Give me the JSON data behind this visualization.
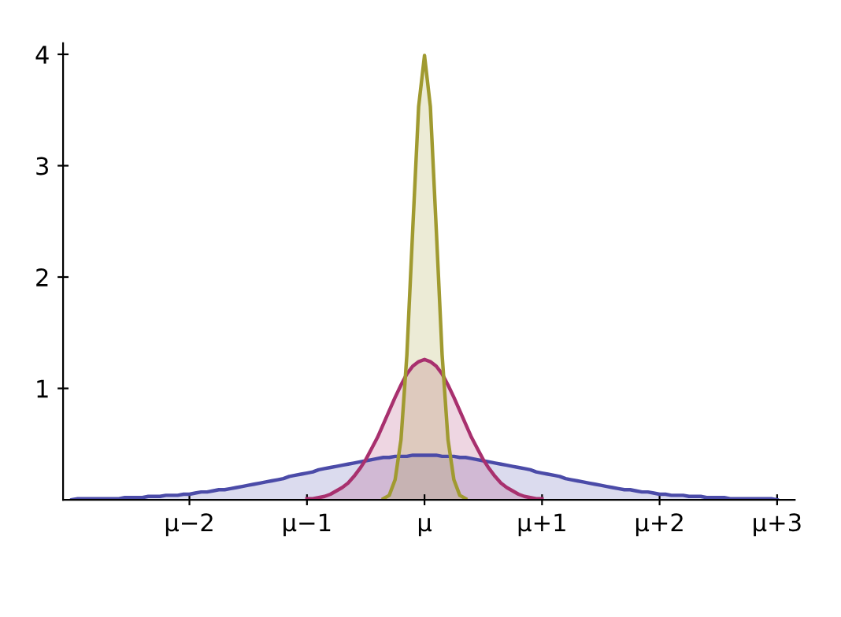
{
  "chart_data": {
    "type": "area",
    "categories": [
      null,
      null,
      null,
      null,
      null,
      null,
      null,
      null,
      null,
      null,
      null,
      null,
      null,
      null,
      null,
      null,
      null,
      null,
      null,
      null,
      "μ−2",
      null,
      null,
      null,
      null,
      null,
      null,
      null,
      null,
      null,
      null,
      null,
      null,
      null,
      null,
      null,
      null,
      null,
      null,
      null,
      "μ−1",
      null,
      null,
      null,
      null,
      null,
      null,
      null,
      null,
      null,
      null,
      null,
      null,
      null,
      null,
      null,
      null,
      null,
      null,
      null,
      "μ",
      null,
      null,
      null,
      null,
      null,
      null,
      null,
      null,
      null,
      null,
      null,
      null,
      null,
      null,
      null,
      null,
      null,
      null,
      null,
      "μ+1",
      null,
      null,
      null,
      null,
      null,
      null,
      null,
      null,
      null,
      null,
      null,
      null,
      null,
      null,
      null,
      null,
      null,
      null,
      null,
      "μ+2",
      null,
      null,
      null,
      null,
      null,
      null,
      null,
      null,
      null,
      null,
      null,
      null,
      null,
      null,
      null,
      null,
      null,
      null,
      null,
      "μ+3"
    ],
    "series": [
      {
        "color": "#4b4ba8",
        "values": [
          0.0,
          0.01,
          0.01,
          0.01,
          0.01,
          0.01,
          0.01,
          0.01,
          0.01,
          0.02,
          0.02,
          0.02,
          0.02,
          0.03,
          0.03,
          0.03,
          0.04,
          0.04,
          0.04,
          0.05,
          0.05,
          0.06,
          0.07,
          0.07,
          0.08,
          0.09,
          0.09,
          0.1,
          0.11,
          0.12,
          0.13,
          0.14,
          0.15,
          0.16,
          0.17,
          0.18,
          0.19,
          0.21,
          0.22,
          0.23,
          0.24,
          0.25,
          0.27,
          0.28,
          0.29,
          0.3,
          0.31,
          0.32,
          0.33,
          0.34,
          0.35,
          0.36,
          0.37,
          0.38,
          0.38,
          0.39,
          0.39,
          0.39,
          0.4,
          0.4,
          0.4,
          0.4,
          0.4,
          0.39,
          0.39,
          0.39,
          0.38,
          0.38,
          0.37,
          0.36,
          0.35,
          0.34,
          0.33,
          0.32,
          0.31,
          0.3,
          0.29,
          0.28,
          0.27,
          0.25,
          0.24,
          0.23,
          0.22,
          0.21,
          0.19,
          0.18,
          0.17,
          0.16,
          0.15,
          0.14,
          0.13,
          0.12,
          0.11,
          0.1,
          0.09,
          0.09,
          0.08,
          0.07,
          0.07,
          0.06,
          0.05,
          0.05,
          0.04,
          0.04,
          0.04,
          0.03,
          0.03,
          0.03,
          0.02,
          0.02,
          0.02,
          0.02,
          0.01,
          0.01,
          0.01,
          0.01,
          0.01,
          0.01,
          0.01,
          0.01,
          0.0
        ]
      },
      {
        "color": "#a8306e",
        "values": [
          null,
          null,
          null,
          null,
          null,
          null,
          null,
          null,
          null,
          null,
          null,
          null,
          null,
          null,
          null,
          null,
          null,
          null,
          null,
          null,
          null,
          null,
          null,
          null,
          null,
          null,
          null,
          null,
          null,
          null,
          null,
          null,
          null,
          null,
          null,
          null,
          null,
          null,
          null,
          null,
          0.01,
          0.01,
          0.02,
          0.03,
          0.05,
          0.08,
          0.11,
          0.15,
          0.21,
          0.28,
          0.36,
          0.46,
          0.56,
          0.68,
          0.8,
          0.92,
          1.03,
          1.13,
          1.2,
          1.24,
          1.26,
          1.24,
          1.2,
          1.13,
          1.03,
          0.92,
          0.8,
          0.68,
          0.56,
          0.46,
          0.36,
          0.28,
          0.21,
          0.15,
          0.11,
          0.08,
          0.05,
          0.03,
          0.02,
          0.01,
          0.01,
          null,
          null,
          null,
          null,
          null,
          null,
          null,
          null,
          null,
          null,
          null,
          null,
          null,
          null,
          null,
          null,
          null,
          null,
          null,
          null,
          null,
          null,
          null,
          null,
          null,
          null,
          null,
          null,
          null,
          null,
          null,
          null,
          null,
          null,
          null,
          null,
          null,
          null,
          null,
          null
        ]
      },
      {
        "color": "#a09a30",
        "values": [
          null,
          null,
          null,
          null,
          null,
          null,
          null,
          null,
          null,
          null,
          null,
          null,
          null,
          null,
          null,
          null,
          null,
          null,
          null,
          null,
          null,
          null,
          null,
          null,
          null,
          null,
          null,
          null,
          null,
          null,
          null,
          null,
          null,
          null,
          null,
          null,
          null,
          null,
          null,
          null,
          null,
          null,
          null,
          null,
          null,
          null,
          null,
          null,
          null,
          null,
          null,
          null,
          null,
          0.01,
          0.04,
          0.18,
          0.54,
          1.3,
          2.43,
          3.53,
          3.99,
          3.53,
          2.43,
          1.3,
          0.54,
          0.18,
          0.04,
          0.01,
          null,
          null,
          null,
          null,
          null,
          null,
          null,
          null,
          null,
          null,
          null,
          null,
          null,
          null,
          null,
          null,
          null,
          null,
          null,
          null,
          null,
          null,
          null,
          null,
          null,
          null,
          null,
          null,
          null,
          null,
          null,
          null,
          null,
          null,
          null,
          null,
          null,
          null,
          null,
          null,
          null,
          null,
          null,
          null,
          null,
          null,
          null,
          null,
          null,
          null,
          null,
          null,
          null
        ]
      }
    ],
    "ylim": [
      0,
      4.1
    ],
    "yticks": [
      1,
      2,
      3,
      4
    ],
    "grid": false,
    "legend": false
  }
}
